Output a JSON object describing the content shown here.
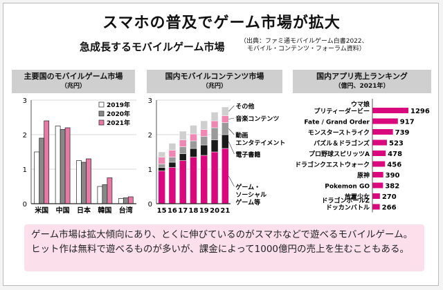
{
  "header": {
    "title": "スマホの普及でゲーム市場が拡大",
    "subtitle": "急成長するモバイルゲーム市場",
    "source_line1": "（出典：ファミ通モバイルゲーム白書2022、",
    "source_line2": "モバイル・コンテンツ・フォーラム資料）"
  },
  "note": "ゲーム市場は拡大傾向にあり、とくに伸びているのがスマホなどで遊べるモバイルゲーム。ヒット作は無料で遊べるものが多いが、課金によって1000億円の売上を生むこともある。",
  "colors": {
    "c2019": "#ffffff",
    "c2020": "#888888",
    "c2021": "#e67aa5",
    "magenta": "#d9087d",
    "black": "#1a1a1a",
    "gray": "#9a9a9a",
    "pink": "#ef87b2",
    "lightgray": "#cfcfcf"
  },
  "chart_data": [
    {
      "type": "bar",
      "title": "主要国のモバイルゲーム市場",
      "unit": "（兆円）",
      "categories": [
        "米国",
        "中国",
        "日本",
        "韓国",
        "台湾"
      ],
      "series": [
        {
          "name": "2019年",
          "values": [
            1.5,
            2.25,
            1.25,
            0.5,
            0.15
          ]
        },
        {
          "name": "2020年",
          "values": [
            1.9,
            2.15,
            1.2,
            0.55,
            0.17
          ]
        },
        {
          "name": "2021年",
          "values": [
            2.4,
            2.2,
            1.3,
            0.75,
            0.2
          ]
        }
      ],
      "yticks": [
        "0",
        "1",
        "2",
        "3"
      ],
      "ylim": [
        0,
        3
      ],
      "legend": "top-right"
    },
    {
      "type": "bar",
      "stacked": true,
      "title": "国内モバイルコンテンツ市場",
      "unit": "（兆円）",
      "categories": [
        "15",
        "16",
        "17",
        "18",
        "19",
        "20",
        "21"
      ],
      "series": [
        {
          "name": "ゲーム・ソーシャルゲーム等",
          "values": [
            0.95,
            1.05,
            1.25,
            1.35,
            1.4,
            1.5,
            1.6
          ]
        },
        {
          "name": "電子書籍",
          "values": [
            0.1,
            0.15,
            0.2,
            0.25,
            0.3,
            0.35,
            0.4
          ]
        },
        {
          "name": "動画エンタテイメント",
          "values": [
            0.1,
            0.15,
            0.2,
            0.22,
            0.25,
            0.35,
            0.35
          ]
        },
        {
          "name": "音楽コンテンツ",
          "values": [
            0.2,
            0.2,
            0.2,
            0.2,
            0.2,
            0.2,
            0.2
          ]
        },
        {
          "name": "その他",
          "values": [
            0.15,
            0.2,
            0.25,
            0.25,
            0.25,
            0.25,
            0.25
          ]
        }
      ],
      "yticks": [
        "0",
        "1",
        "2",
        "3"
      ],
      "ylim": [
        0,
        3
      ]
    },
    {
      "type": "bar",
      "orientation": "horizontal",
      "title": "国内アプリ売上ランキング",
      "unit": "（億円、2021年）",
      "categories": [
        [
          "ウマ娘",
          "プリティーダービー"
        ],
        [
          "Fate / Grand Order"
        ],
        [
          "モンスターストライク"
        ],
        [
          "パズル＆ドラゴンズ"
        ],
        [
          "プロ野球スピリッツA"
        ],
        [
          "ドラゴンクエストウォーク"
        ],
        [
          "原神"
        ],
        [
          "Pokemon GO"
        ],
        [
          "放置少女"
        ],
        [
          "ドラゴンボールZ",
          "ドッカンバトル"
        ]
      ],
      "values": [
        1296,
        917,
        739,
        523,
        478,
        456,
        390,
        382,
        270,
        266
      ],
      "labels": [
        "1296",
        "917",
        "739",
        "523",
        "478",
        "456",
        "390",
        "382",
        "270",
        "266"
      ]
    }
  ]
}
